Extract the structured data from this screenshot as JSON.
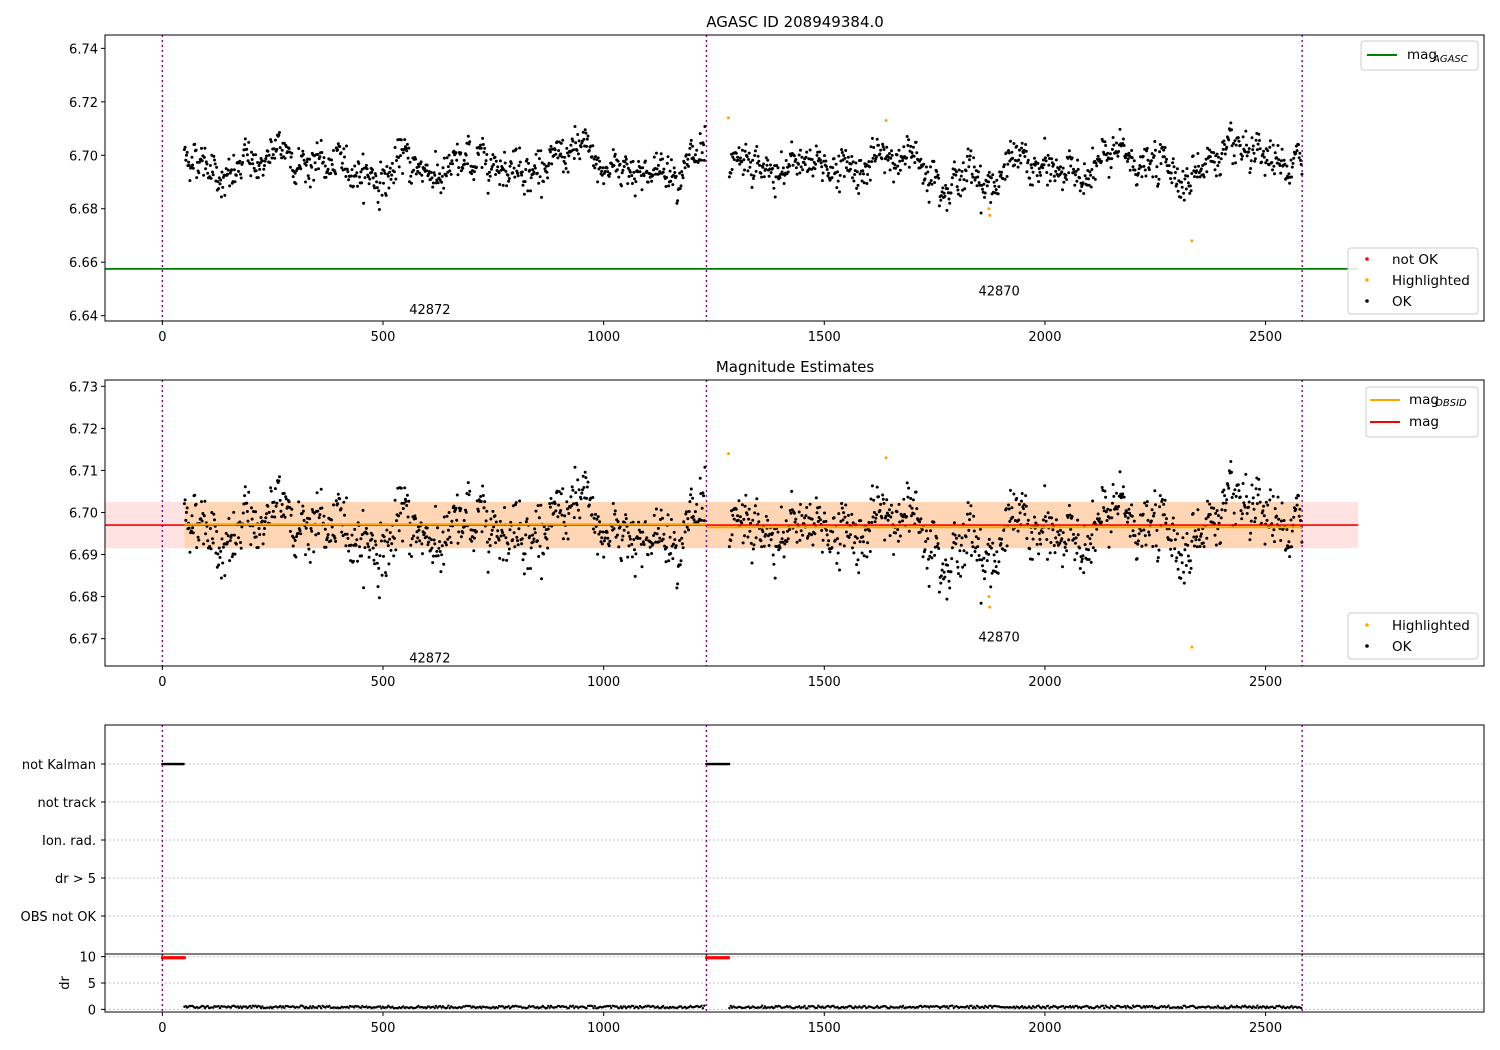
{
  "x_ticks": [
    0,
    500,
    1000,
    1500,
    2000,
    2500
  ],
  "obs_boundaries": [
    0,
    1233,
    2583
  ],
  "panels": {
    "top": {
      "title": "AGASC ID 208949384.0",
      "ylim": [
        6.638,
        6.745
      ],
      "yticks": [
        "6.64",
        "6.66",
        "6.68",
        "6.70",
        "6.72",
        "6.74"
      ],
      "mag_agasc": 6.6575,
      "legend_line": {
        "label": "mag",
        "sub": "AGASC",
        "color": "#008000"
      },
      "legend_points": [
        {
          "label": "not OK",
          "color": "#ff0000"
        },
        {
          "label": "Highlighted",
          "color": "#ffa500"
        },
        {
          "label": "OK",
          "color": "#000000"
        }
      ],
      "annotations": [
        {
          "text": "42872",
          "x": 616,
          "y": 6.6425
        },
        {
          "text": "42870",
          "x": 1906,
          "y": 6.6495
        }
      ]
    },
    "middle": {
      "title": "Magnitude Estimates",
      "ylim": [
        6.6635,
        6.7315
      ],
      "yticks": [
        "6.67",
        "6.68",
        "6.69",
        "6.70",
        "6.71",
        "6.72",
        "6.73"
      ],
      "mag": 6.697,
      "mag_band": [
        6.6915,
        6.7025
      ],
      "obsid_band": [
        6.6915,
        6.7025
      ],
      "legend_lines": [
        {
          "label": "mag",
          "sub": "OBSID",
          "color": "#ffa500"
        },
        {
          "label": "mag",
          "sub": "",
          "color": "#ff0000"
        }
      ],
      "legend_points": [
        {
          "label": "Highlighted",
          "color": "#ffa500"
        },
        {
          "label": "OK",
          "color": "#000000"
        }
      ],
      "annotations": [
        {
          "text": "42872",
          "x": 616,
          "y": 6.6655
        },
        {
          "text": "42870",
          "x": 1906,
          "y": 6.7705
        }
      ]
    },
    "flags": {
      "rows": [
        "not Kalman",
        "not track",
        "Ion. rad.",
        "dr > 5",
        "OBS not OK"
      ]
    },
    "dr": {
      "ylabel": "dr",
      "yticks": [
        "0",
        "5",
        "10"
      ],
      "ylim": [
        -0.5,
        10.5
      ]
    }
  },
  "chart_data": {
    "type": "scatter",
    "xlim": [
      -130,
      2995
    ],
    "series": [
      {
        "name": "mag",
        "role": "observation 42872",
        "x_range": [
          50,
          1230
        ],
        "mean": 6.697,
        "scatter": 0.0055,
        "dip_x": [
          150,
          500,
          1000
        ]
      },
      {
        "name": "mag",
        "role": "observation 42870",
        "x_range": [
          1285,
          2583
        ],
        "mean": 6.696,
        "scatter": 0.0055,
        "dip_x": [
          1400,
          1880,
          2330
        ]
      },
      {
        "name": "Highlighted",
        "points": [
          [
            1283,
            6.714
          ],
          [
            1640,
            6.713
          ],
          [
            1873,
            6.68
          ],
          [
            1875,
            6.6775
          ],
          [
            2333,
            6.668
          ]
        ]
      },
      {
        "name": "not Kalman",
        "x_ranges": [
          [
            0,
            50
          ],
          [
            1233,
            1285
          ]
        ]
      },
      {
        "name": "dr",
        "value_range": [
          0,
          1
        ],
        "high_ranges": [
          [
            0,
            50
          ],
          [
            1233,
            1285
          ]
        ],
        "high_value": 9.8
      }
    ]
  }
}
